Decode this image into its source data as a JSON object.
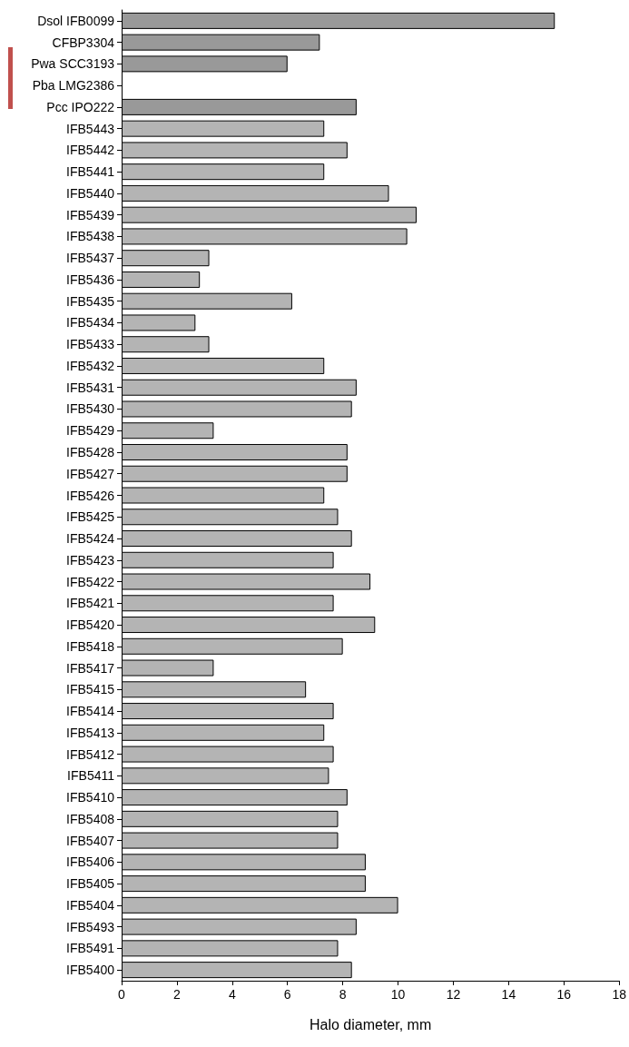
{
  "chart_data": {
    "type": "bar",
    "orientation": "horizontal",
    "xlabel": "Halo diameter, mm",
    "categories": [
      "Dsol IFB0099",
      "CFBP3304",
      "Pwa SCC3193",
      "Pba LMG2386",
      "Pcc IPO222",
      "IFB5443",
      "IFB5442",
      "IFB5441",
      "IFB5440",
      "IFB5439",
      "IFB5438",
      "IFB5437",
      "IFB5436",
      "IFB5435",
      "IFB5434",
      "IFB5433",
      "IFB5432",
      "IFB5431",
      "IFB5430",
      "IFB5429",
      "IFB5428",
      "IFB5427",
      "IFB5426",
      "IFB5425",
      "IFB5424",
      "IFB5423",
      "IFB5422",
      "IFB5421",
      "IFB5420",
      "IFB5418",
      "IFB5417",
      "IFB5415",
      "IFB5414",
      "IFB5413",
      "IFB5412",
      "IFB5411",
      "IFB5410",
      "IFB5408",
      "IFB5407",
      "IFB5406",
      "IFB5405",
      "IFB5404",
      "IFB5493",
      "IFB5491",
      "IFB5400"
    ],
    "values": [
      15.67,
      7.17,
      6.0,
      0,
      8.5,
      7.33,
      8.17,
      7.33,
      9.67,
      10.67,
      10.33,
      3.17,
      2.83,
      6.17,
      2.67,
      3.17,
      7.33,
      8.5,
      8.33,
      3.33,
      8.17,
      8.17,
      7.33,
      7.83,
      8.33,
      7.67,
      9.0,
      7.67,
      9.17,
      8.0,
      3.33,
      6.67,
      7.67,
      7.33,
      7.67,
      7.5,
      8.17,
      7.83,
      7.83,
      8.83,
      8.83,
      10.0,
      8.5,
      7.83,
      8.33
    ],
    "colors": [
      "#999999",
      "#999999",
      "#999999",
      "#999999",
      "#999999",
      "#b4b4b4",
      "#b4b4b4",
      "#b4b4b4",
      "#b4b4b4",
      "#b4b4b4",
      "#b4b4b4",
      "#b4b4b4",
      "#b4b4b4",
      "#b4b4b4",
      "#b4b4b4",
      "#b4b4b4",
      "#b4b4b4",
      "#b4b4b4",
      "#b4b4b4",
      "#b4b4b4",
      "#b4b4b4",
      "#b4b4b4",
      "#b4b4b4",
      "#b4b4b4",
      "#b4b4b4",
      "#b4b4b4",
      "#b4b4b4",
      "#b4b4b4",
      "#b4b4b4",
      "#b4b4b4",
      "#b4b4b4",
      "#b4b4b4",
      "#b4b4b4",
      "#b4b4b4",
      "#b4b4b4",
      "#b4b4b4",
      "#b4b4b4",
      "#b4b4b4",
      "#b4b4b4",
      "#b4b4b4",
      "#b4b4b4",
      "#b4b4b4",
      "#b4b4b4",
      "#b4b4b4",
      "#b4b4b4"
    ],
    "xlim": [
      0,
      18
    ],
    "xticks": [
      0,
      2,
      4,
      6,
      8,
      10,
      12,
      14,
      16,
      18
    ],
    "grid": false
  }
}
